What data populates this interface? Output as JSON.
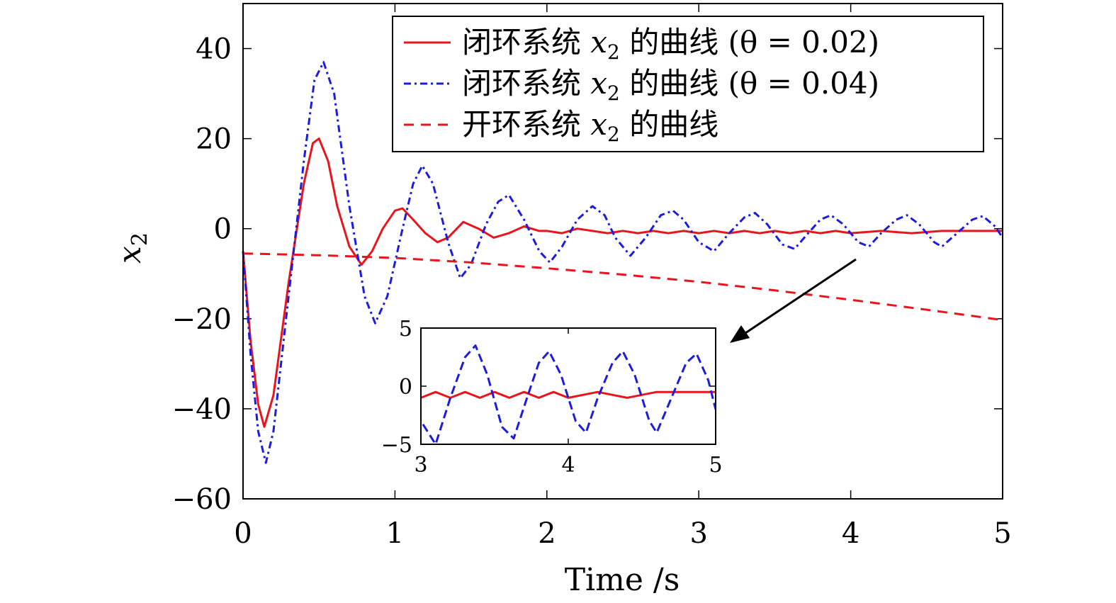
{
  "chart_data": {
    "type": "line",
    "title": "",
    "xlabel": "Time /s",
    "ylabel_var": "x",
    "ylabel_sub": "2",
    "xlim": [
      0,
      5
    ],
    "ylim": [
      -60,
      50
    ],
    "xticks": [
      0,
      1,
      2,
      3,
      4,
      5
    ],
    "xtick_labels": [
      "0",
      "1",
      "2",
      "3",
      "4",
      "5"
    ],
    "yticks": [
      -60,
      -40,
      -20,
      0,
      20,
      40
    ],
    "ytick_labels": [
      "−60",
      "−40",
      "−20",
      "0",
      "20",
      "40"
    ],
    "grid": false,
    "legend_position": "top-right",
    "series": [
      {
        "name": "闭环系统 x2 的曲线 (θ = 0.02)",
        "legend_prefix": "闭环系统 ",
        "legend_var": "x",
        "legend_sub": "2",
        "legend_suffix": " 的曲线 (θ = 0.02)",
        "color": "#e8161c",
        "style": "solid",
        "points": [
          [
            0,
            -5
          ],
          [
            0.05,
            -25
          ],
          [
            0.1,
            -39
          ],
          [
            0.14,
            -44
          ],
          [
            0.2,
            -37
          ],
          [
            0.3,
            -12
          ],
          [
            0.4,
            10
          ],
          [
            0.46,
            19
          ],
          [
            0.5,
            20
          ],
          [
            0.56,
            15
          ],
          [
            0.62,
            5
          ],
          [
            0.7,
            -4
          ],
          [
            0.78,
            -8
          ],
          [
            0.85,
            -5
          ],
          [
            0.92,
            0
          ],
          [
            1.0,
            4
          ],
          [
            1.05,
            4.5
          ],
          [
            1.12,
            2
          ],
          [
            1.2,
            -1
          ],
          [
            1.28,
            -3
          ],
          [
            1.35,
            -2
          ],
          [
            1.45,
            1.5
          ],
          [
            1.55,
            0
          ],
          [
            1.65,
            -2
          ],
          [
            1.75,
            -1
          ],
          [
            1.85,
            0.5
          ],
          [
            1.95,
            -0.5
          ],
          [
            2.0,
            -0.5
          ],
          [
            2.1,
            -1
          ],
          [
            2.2,
            0
          ],
          [
            2.3,
            -0.5
          ],
          [
            2.4,
            -1
          ],
          [
            2.5,
            -0.5
          ],
          [
            2.6,
            -1
          ],
          [
            2.7,
            -0.5
          ],
          [
            2.8,
            -1
          ],
          [
            2.9,
            -0.5
          ],
          [
            3.0,
            -1
          ],
          [
            3.1,
            -0.5
          ],
          [
            3.2,
            -1
          ],
          [
            3.3,
            -0.5
          ],
          [
            3.4,
            -1
          ],
          [
            3.5,
            -0.5
          ],
          [
            3.6,
            -1
          ],
          [
            3.7,
            -0.5
          ],
          [
            3.8,
            -1
          ],
          [
            3.9,
            -0.5
          ],
          [
            4.0,
            -1
          ],
          [
            4.2,
            -0.5
          ],
          [
            4.4,
            -1
          ],
          [
            4.6,
            -0.5
          ],
          [
            4.8,
            -0.5
          ],
          [
            5.0,
            -0.5
          ]
        ]
      },
      {
        "name": "闭环系统 x2 的曲线 (θ = 0.04)",
        "legend_prefix": "闭环系统 ",
        "legend_var": "x",
        "legend_sub": "2",
        "legend_suffix": " 的曲线 (θ = 0.04)",
        "color": "#1c1ce0",
        "style": "dashdot",
        "points": [
          [
            0,
            -5
          ],
          [
            0.05,
            -28
          ],
          [
            0.1,
            -45
          ],
          [
            0.15,
            -52
          ],
          [
            0.2,
            -45
          ],
          [
            0.3,
            -15
          ],
          [
            0.4,
            15
          ],
          [
            0.47,
            33
          ],
          [
            0.53,
            37
          ],
          [
            0.6,
            30
          ],
          [
            0.7,
            5
          ],
          [
            0.8,
            -15
          ],
          [
            0.87,
            -21
          ],
          [
            0.95,
            -15
          ],
          [
            1.05,
            0
          ],
          [
            1.12,
            10
          ],
          [
            1.18,
            14
          ],
          [
            1.25,
            10
          ],
          [
            1.35,
            -3
          ],
          [
            1.43,
            -11
          ],
          [
            1.5,
            -8
          ],
          [
            1.6,
            1
          ],
          [
            1.68,
            6
          ],
          [
            1.75,
            7.5
          ],
          [
            1.85,
            2
          ],
          [
            1.95,
            -5
          ],
          [
            2.02,
            -7.5
          ],
          [
            2.1,
            -4
          ],
          [
            2.2,
            2
          ],
          [
            2.3,
            5
          ],
          [
            2.38,
            3
          ],
          [
            2.45,
            -2
          ],
          [
            2.55,
            -6
          ],
          [
            2.65,
            -2
          ],
          [
            2.75,
            3
          ],
          [
            2.83,
            4
          ],
          [
            2.9,
            2
          ],
          [
            3.0,
            -3
          ],
          [
            3.1,
            -5
          ],
          [
            3.2,
            -1
          ],
          [
            3.3,
            2.5
          ],
          [
            3.37,
            3.5
          ],
          [
            3.45,
            1
          ],
          [
            3.55,
            -3.5
          ],
          [
            3.63,
            -4.5
          ],
          [
            3.72,
            -1
          ],
          [
            3.8,
            2
          ],
          [
            3.87,
            3
          ],
          [
            3.95,
            1
          ],
          [
            4.05,
            -3
          ],
          [
            4.12,
            -4
          ],
          [
            4.2,
            -1
          ],
          [
            4.3,
            2
          ],
          [
            4.37,
            3
          ],
          [
            4.45,
            1
          ],
          [
            4.55,
            -3
          ],
          [
            4.6,
            -4
          ],
          [
            4.7,
            -1
          ],
          [
            4.8,
            2
          ],
          [
            4.87,
            2.8
          ],
          [
            4.95,
            0.5
          ],
          [
            5.0,
            -2
          ]
        ]
      },
      {
        "name": "开环系统 x2 的曲线",
        "legend_prefix": "开环系统 ",
        "legend_var": "x",
        "legend_sub": "2",
        "legend_suffix": " 的曲线",
        "color": "#e8161c",
        "style": "dashed",
        "points": [
          [
            0,
            -5.5
          ],
          [
            0.5,
            -5.9
          ],
          [
            1.0,
            -6.5
          ],
          [
            1.5,
            -7.5
          ],
          [
            2.0,
            -8.8
          ],
          [
            2.5,
            -10.2
          ],
          [
            3.0,
            -11.8
          ],
          [
            3.5,
            -13.7
          ],
          [
            4.0,
            -15.8
          ],
          [
            4.5,
            -18
          ],
          [
            5.0,
            -20.3
          ]
        ]
      }
    ],
    "inset": {
      "xlim": [
        3,
        5
      ],
      "ylim": [
        -5,
        5
      ],
      "xticks": [
        3,
        4,
        5
      ],
      "xtick_labels": [
        "3",
        "4",
        "5"
      ],
      "yticks": [
        -5,
        0,
        5
      ],
      "ytick_labels": [
        "−5",
        "0",
        "5"
      ]
    }
  }
}
